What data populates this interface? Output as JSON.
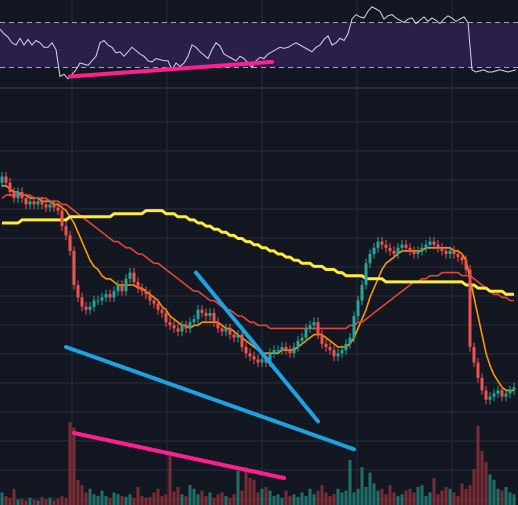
{
  "colors": {
    "background": "#131722",
    "grid": "#2a2e39",
    "rsi_band": "#2a1f4a",
    "rsi_line": "#d6d6e0",
    "rsi_band_border": "#c8c8d0",
    "candle_up": "#26a69a",
    "candle_down": "#ef5350",
    "vol_up": "#1f6f66",
    "vol_down": "#7a2b33",
    "ma_fast": "#ff9800",
    "ma_mid": "#e0463b",
    "ma_slow": "#ffeb3b",
    "trend_blue": "#1fa2e0",
    "trend_pink": "#ff1f8e"
  },
  "chart_data": [
    {
      "type": "line",
      "panel": "rsi",
      "band": [
        30,
        70
      ],
      "ylim": [
        10,
        90
      ],
      "x": [
        0,
        4,
        8,
        12,
        16,
        20,
        24,
        28,
        32,
        36,
        40,
        44,
        48,
        52,
        56,
        60,
        64,
        68,
        72,
        76,
        80,
        84,
        88,
        92,
        96,
        100,
        104,
        108,
        112,
        116,
        120,
        124,
        128,
        132,
        136,
        140,
        144,
        148,
        152,
        156,
        160,
        164,
        168,
        172,
        176,
        180,
        184,
        188,
        192,
        196,
        200,
        204,
        208,
        212,
        216,
        220,
        224,
        228,
        232,
        236,
        240,
        244,
        248,
        252,
        256,
        260,
        264,
        268,
        272,
        276,
        280,
        284,
        288,
        292,
        296,
        300,
        304,
        308,
        312,
        316,
        320,
        324,
        328,
        332,
        336,
        340,
        344,
        348,
        352,
        356,
        360,
        364,
        368,
        372,
        376,
        380,
        384,
        388,
        392,
        396,
        400,
        404,
        408,
        412,
        416,
        420,
        424,
        428,
        432,
        436,
        440,
        444,
        448,
        452,
        456,
        460,
        464,
        468,
        472,
        476,
        480,
        484,
        488,
        492,
        496,
        500,
        504,
        508,
        512,
        516
      ],
      "values": [
        64,
        60,
        57,
        52,
        50,
        56,
        50,
        55,
        50,
        54,
        52,
        48,
        48,
        52,
        46,
        22,
        24,
        20,
        24,
        28,
        34,
        33,
        32,
        36,
        40,
        52,
        54,
        50,
        48,
        43,
        44,
        40,
        44,
        48,
        45,
        42,
        40,
        36,
        35,
        38,
        37,
        36,
        36,
        28,
        34,
        31,
        34,
        40,
        50,
        48,
        44,
        41,
        38,
        46,
        52,
        49,
        42,
        40,
        38,
        36,
        40,
        38,
        34,
        30,
        36,
        39,
        38,
        42,
        44,
        46,
        48,
        47,
        48,
        50,
        52,
        50,
        48,
        46,
        44,
        48,
        50,
        55,
        58,
        50,
        52,
        56,
        54,
        60,
        73,
        77,
        75,
        74,
        80,
        84,
        82,
        80,
        73,
        76,
        77,
        74,
        72,
        70,
        73,
        74,
        69,
        72,
        75,
        71,
        74,
        72,
        69,
        73,
        76,
        74,
        71,
        73,
        75,
        70,
        28,
        26,
        27,
        28,
        26,
        26,
        27,
        28,
        27,
        26,
        27,
        28
      ]
    },
    {
      "type": "candlestick",
      "panel": "price",
      "ylim": [
        0,
        100
      ],
      "x": [
        2,
        6,
        10,
        14,
        18,
        22,
        26,
        30,
        34,
        38,
        42,
        46,
        50,
        54,
        58,
        62,
        66,
        70,
        74,
        78,
        82,
        86,
        90,
        94,
        98,
        102,
        106,
        110,
        114,
        118,
        122,
        126,
        130,
        134,
        138,
        142,
        146,
        150,
        154,
        158,
        162,
        166,
        170,
        174,
        178,
        182,
        186,
        190,
        194,
        198,
        202,
        206,
        210,
        214,
        218,
        222,
        226,
        230,
        234,
        238,
        242,
        246,
        250,
        254,
        258,
        262,
        266,
        270,
        274,
        278,
        282,
        286,
        290,
        294,
        298,
        302,
        306,
        310,
        314,
        318,
        322,
        326,
        330,
        334,
        338,
        342,
        346,
        350,
        354,
        358,
        362,
        366,
        370,
        374,
        378,
        382,
        386,
        390,
        394,
        398,
        402,
        406,
        410,
        414,
        418,
        422,
        426,
        430,
        434,
        438,
        442,
        446,
        450,
        454,
        458,
        462,
        466,
        470,
        474,
        478,
        482,
        486,
        490,
        494,
        498,
        502,
        506,
        510,
        514
      ],
      "open": [
        83,
        85,
        83,
        80,
        78,
        80,
        78,
        76,
        77,
        76,
        77,
        76,
        75,
        76,
        75,
        74,
        69,
        66,
        61,
        50,
        46,
        43,
        42,
        43,
        45,
        45,
        46,
        47,
        46,
        48,
        50,
        48,
        52,
        54,
        51,
        49,
        48,
        47,
        45,
        44,
        42,
        41,
        38,
        37,
        36,
        35,
        37,
        36,
        38,
        39,
        42,
        41,
        40,
        41,
        38,
        36,
        35,
        36,
        34,
        33,
        34,
        30,
        28,
        27,
        26,
        25,
        26,
        25,
        28,
        29,
        29,
        30,
        29,
        28,
        30,
        32,
        33,
        36,
        37,
        38,
        34,
        31,
        30,
        29,
        27,
        28,
        29,
        31,
        33,
        40,
        45,
        50,
        57,
        60,
        62,
        64,
        63,
        62,
        61,
        60,
        62,
        63,
        62,
        61,
        60,
        61,
        62,
        63,
        64,
        63,
        62,
        61,
        60,
        61,
        60,
        59,
        58,
        55,
        30,
        25,
        20,
        16,
        13,
        14,
        15,
        16,
        14,
        15,
        16
      ],
      "close": [
        85,
        83,
        80,
        78,
        80,
        78,
        76,
        77,
        76,
        77,
        76,
        75,
        76,
        75,
        74,
        69,
        66,
        61,
        50,
        46,
        43,
        42,
        43,
        45,
        45,
        46,
        47,
        46,
        48,
        50,
        48,
        52,
        54,
        51,
        49,
        48,
        47,
        45,
        44,
        42,
        41,
        38,
        37,
        36,
        35,
        37,
        36,
        38,
        39,
        42,
        41,
        40,
        41,
        38,
        36,
        35,
        36,
        34,
        33,
        34,
        30,
        28,
        27,
        26,
        25,
        26,
        25,
        28,
        29,
        29,
        30,
        29,
        28,
        30,
        32,
        33,
        36,
        37,
        38,
        34,
        31,
        30,
        29,
        27,
        28,
        29,
        31,
        33,
        40,
        45,
        50,
        57,
        60,
        62,
        64,
        63,
        62,
        61,
        60,
        62,
        63,
        62,
        61,
        60,
        61,
        62,
        63,
        64,
        63,
        62,
        61,
        60,
        61,
        60,
        59,
        58,
        55,
        30,
        25,
        20,
        16,
        13,
        14,
        15,
        16,
        14,
        15,
        16,
        17
      ],
      "series": [
        {
          "name": "",
          "role": "ma_fast",
          "values": [
            82,
            82,
            81,
            80,
            80,
            79,
            79,
            78,
            78,
            78,
            77,
            77,
            77,
            76,
            76,
            75,
            74,
            72,
            70,
            67,
            64,
            61,
            58,
            56,
            55,
            53,
            52,
            52,
            51,
            50,
            50,
            50,
            50,
            50,
            49,
            49,
            48,
            47,
            46,
            45,
            43,
            42,
            40,
            39,
            38,
            37,
            37,
            36,
            37,
            37,
            38,
            38,
            38,
            38,
            38,
            37,
            36,
            36,
            35,
            34,
            33,
            32,
            31,
            30,
            29,
            28,
            28,
            28,
            28,
            28,
            29,
            29,
            29,
            29,
            30,
            31,
            32,
            33,
            34,
            34,
            34,
            33,
            32,
            31,
            30,
            30,
            30,
            31,
            33,
            36,
            39,
            42,
            46,
            49,
            52,
            55,
            57,
            58,
            59,
            60,
            61,
            61,
            61,
            61,
            61,
            61,
            62,
            62,
            62,
            62,
            62,
            62,
            62,
            61,
            61,
            60,
            58,
            52,
            46,
            40,
            34,
            28,
            24,
            21,
            19,
            17,
            16,
            16,
            16
          ]
        },
        {
          "name": "",
          "role": "ma_mid",
          "values": [
            78,
            79,
            79,
            79,
            79,
            79,
            79,
            79,
            78,
            78,
            78,
            78,
            77,
            77,
            77,
            76,
            76,
            75,
            74,
            73,
            72,
            71,
            70,
            69,
            68,
            67,
            66,
            65,
            64,
            64,
            63,
            62,
            62,
            61,
            60,
            60,
            59,
            58,
            57,
            57,
            56,
            55,
            54,
            53,
            52,
            51,
            50,
            49,
            48,
            48,
            47,
            46,
            45,
            45,
            44,
            43,
            42,
            42,
            41,
            40,
            40,
            39,
            38,
            38,
            37,
            37,
            37,
            36,
            36,
            36,
            36,
            36,
            36,
            36,
            36,
            36,
            36,
            36,
            36,
            36,
            36,
            36,
            36,
            36,
            36,
            36,
            36,
            37,
            37,
            38,
            38,
            39,
            40,
            41,
            42,
            43,
            44,
            45,
            46,
            47,
            48,
            49,
            50,
            51,
            51,
            52,
            52,
            53,
            53,
            53,
            54,
            54,
            54,
            54,
            54,
            53,
            53,
            53,
            52,
            51,
            50,
            49,
            48,
            47,
            47,
            46,
            46,
            45,
            45
          ]
        },
        {
          "name": "",
          "role": "ma_slow",
          "values": [
            70,
            70,
            70,
            70,
            70,
            71,
            71,
            71,
            71,
            71,
            71,
            71,
            71,
            71,
            71,
            71,
            71,
            72,
            72,
            72,
            72,
            72,
            72,
            72,
            72,
            72,
            72,
            72,
            73,
            73,
            73,
            73,
            73,
            73,
            73,
            73,
            74,
            74,
            74,
            74,
            74,
            73,
            73,
            73,
            72,
            72,
            72,
            71,
            71,
            70,
            70,
            69,
            69,
            68,
            68,
            67,
            67,
            66,
            66,
            65,
            65,
            64,
            64,
            63,
            63,
            62,
            62,
            61,
            61,
            60,
            60,
            59,
            59,
            58,
            58,
            57,
            57,
            57,
            56,
            56,
            56,
            55,
            55,
            55,
            54,
            54,
            53,
            53,
            53,
            53,
            53,
            52,
            52,
            52,
            52,
            52,
            51,
            51,
            51,
            51,
            51,
            51,
            51,
            51,
            51,
            51,
            51,
            51,
            51,
            51,
            51,
            51,
            51,
            51,
            51,
            51,
            50,
            50,
            50,
            49,
            49,
            49,
            48,
            48,
            48,
            48,
            47,
            47,
            47
          ]
        }
      ]
    },
    {
      "type": "bar",
      "panel": "volume",
      "ylim": [
        0,
        100
      ],
      "x": [
        2,
        6,
        10,
        14,
        18,
        22,
        26,
        30,
        34,
        38,
        42,
        46,
        50,
        54,
        58,
        62,
        66,
        70,
        74,
        78,
        82,
        86,
        90,
        94,
        98,
        102,
        106,
        110,
        114,
        118,
        122,
        126,
        130,
        134,
        138,
        142,
        146,
        150,
        154,
        158,
        162,
        166,
        170,
        174,
        178,
        182,
        186,
        190,
        194,
        198,
        202,
        206,
        210,
        214,
        218,
        222,
        226,
        230,
        234,
        238,
        242,
        246,
        250,
        254,
        258,
        262,
        266,
        270,
        274,
        278,
        282,
        286,
        290,
        294,
        298,
        302,
        306,
        310,
        314,
        318,
        322,
        326,
        330,
        334,
        338,
        342,
        346,
        350,
        354,
        358,
        362,
        366,
        370,
        374,
        378,
        382,
        386,
        390,
        394,
        398,
        402,
        406,
        410,
        414,
        418,
        422,
        426,
        430,
        434,
        438,
        442,
        446,
        450,
        454,
        458,
        462,
        466,
        470,
        474,
        478,
        482,
        486,
        490,
        494,
        498,
        502,
        506,
        510,
        514
      ],
      "values": [
        14,
        10,
        8,
        18,
        6,
        7,
        5,
        8,
        6,
        5,
        9,
        6,
        8,
        5,
        7,
        10,
        8,
        92,
        86,
        28,
        22,
        14,
        18,
        12,
        10,
        16,
        10,
        8,
        14,
        12,
        10,
        9,
        12,
        8,
        20,
        10,
        8,
        9,
        14,
        18,
        10,
        12,
        60,
        15,
        20,
        12,
        10,
        22,
        18,
        12,
        16,
        10,
        14,
        8,
        12,
        14,
        10,
        8,
        12,
        38,
        16,
        42,
        30,
        28,
        14,
        18,
        20,
        16,
        10,
        12,
        8,
        16,
        10,
        12,
        9,
        14,
        10,
        18,
        12,
        16,
        22,
        14,
        10,
        12,
        18,
        14,
        16,
        50,
        14,
        18,
        42,
        20,
        36,
        24,
        16,
        18,
        12,
        22,
        14,
        10,
        12,
        16,
        18,
        14,
        20,
        22,
        10,
        14,
        30,
        12,
        16,
        20,
        18,
        14,
        10,
        24,
        18,
        22,
        40,
        88,
        60,
        48,
        34,
        28,
        18,
        16,
        20,
        14,
        12
      ]
    }
  ],
  "annotations": [
    {
      "color_role": "trend_pink",
      "panel": "rsi",
      "from": [
        70,
        22
      ],
      "to": [
        272,
        35
      ]
    },
    {
      "color_role": "trend_blue",
      "panel": "price",
      "from": [
        66,
        30
      ],
      "to": [
        354,
        -3
      ]
    },
    {
      "color_role": "trend_blue",
      "panel": "price",
      "from": [
        196,
        54
      ],
      "to": [
        318,
        6
      ]
    },
    {
      "color_role": "trend_pink",
      "panel": "volume",
      "from": [
        74,
        80
      ],
      "to": [
        284,
        30
      ]
    }
  ]
}
